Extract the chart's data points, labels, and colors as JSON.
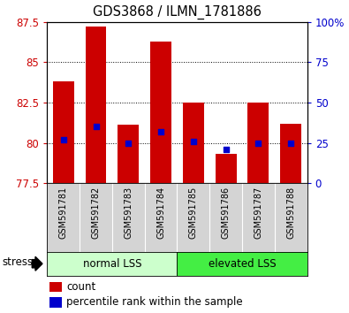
{
  "title": "GDS3868 / ILMN_1781886",
  "samples": [
    "GSM591781",
    "GSM591782",
    "GSM591783",
    "GSM591784",
    "GSM591785",
    "GSM591786",
    "GSM591787",
    "GSM591788"
  ],
  "bar_heights": [
    83.8,
    87.2,
    81.1,
    86.3,
    82.5,
    79.3,
    82.5,
    81.2
  ],
  "blue_dot_values": [
    80.2,
    81.0,
    80.0,
    80.7,
    80.1,
    79.6,
    80.0,
    80.0
  ],
  "ylim": [
    77.5,
    87.5
  ],
  "yticks_left": [
    77.5,
    80.0,
    82.5,
    85.0,
    87.5
  ],
  "ytick_labels_left": [
    "77.5",
    "80",
    "82.5",
    "85",
    "87.5"
  ],
  "yticks_right_pct": [
    0,
    25,
    50,
    75,
    100
  ],
  "ytick_labels_right": [
    "0",
    "25",
    "50",
    "75",
    "100%"
  ],
  "bar_color": "#cc0000",
  "dot_color": "#0000cc",
  "bar_width": 0.65,
  "normal_lss_color": "#ccffcc",
  "elevated_lss_color": "#44ee44",
  "stress_label": "stress",
  "legend_count_label": "count",
  "legend_percentile_label": "percentile rank within the sample",
  "xlabel_color": "#cc0000",
  "ylabel_right_color": "#0000cc",
  "gray_bg": "#d4d4d4"
}
